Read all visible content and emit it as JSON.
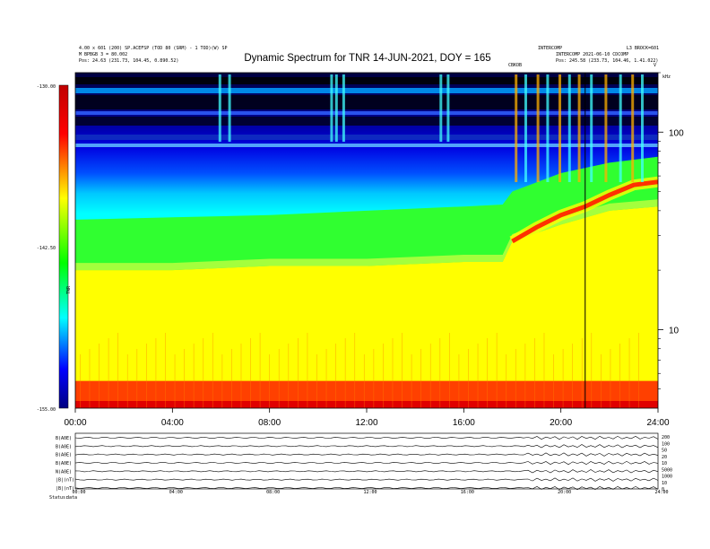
{
  "header": {
    "title": "Dynamic Spectrum for TNR 14-JUN-2021, DOY = 165",
    "left_lines": [
      "4.00 x 601 (200) SP.ACEFSP (TOD 80 (SRM) - 1 TOD)(W) SP",
      "M BPBGB 3 = 80.002",
      "Pos:    24.63 (231.73, 104.45, 0.890.52)"
    ],
    "right_lines": [
      "INTERCOMP",
      "INTERCOMP 2021-06-10 CDCOMP",
      "Pos:    245.58 (233.73, 104.46, 1.41.022)"
    ],
    "right_top_label": "L3 BROCK=601",
    "marker_label_left": "CBKOB",
    "marker_label_right": "V",
    "axis_unit_right": "kHz"
  },
  "colorbar": {
    "max_label": "-130.00",
    "mid_label": "-142.50",
    "min_label": "-155.00",
    "unit_label": "TNR"
  },
  "chart_data": {
    "type": "heatmap",
    "title": "Dynamic Spectrum for TNR 14-JUN-2021, DOY = 165",
    "x_ticks": [
      "00:00",
      "04:00",
      "08:00",
      "12:00",
      "16:00",
      "20:00",
      "24:00"
    ],
    "x_range_hours": [
      0,
      24
    ],
    "y_scale": "log",
    "y_ticks": [
      "100",
      "10"
    ],
    "y_range_khz": [
      4,
      200
    ],
    "colorbar_range": [
      -155,
      -130
    ],
    "colorscale": [
      "#000080",
      "#0000ff",
      "#00ffff",
      "#00ff00",
      "#ffff00",
      "#ff0000",
      "#c00000"
    ],
    "vertical_marker_hour": 21.0,
    "boundaries_khz": [
      {
        "hour": 0,
        "cyan_green": 36,
        "green_yellow": 20,
        "yellow_red": 5.5
      },
      {
        "hour": 4,
        "cyan_green": 37,
        "green_yellow": 20,
        "yellow_red": 5.5
      },
      {
        "hour": 8,
        "cyan_green": 38,
        "green_yellow": 21,
        "yellow_red": 5.5
      },
      {
        "hour": 12,
        "cyan_green": 40,
        "green_yellow": 21,
        "yellow_red": 5.5
      },
      {
        "hour": 16,
        "cyan_green": 42,
        "green_yellow": 22,
        "yellow_red": 5.5
      },
      {
        "hour": 17.6,
        "cyan_green": 43,
        "green_yellow": 22,
        "yellow_red": 5.5
      },
      {
        "hour": 18.0,
        "cyan_green": 50,
        "green_yellow": 28,
        "yellow_red": 5.5
      },
      {
        "hour": 20,
        "cyan_green": 62,
        "green_yellow": 34,
        "yellow_red": 5.5
      },
      {
        "hour": 22,
        "cyan_green": 70,
        "green_yellow": 40,
        "yellow_red": 5.5
      },
      {
        "hour": 24,
        "cyan_green": 75,
        "green_yellow": 42,
        "yellow_red": 5.5
      }
    ],
    "emission_ridge_khz": [
      {
        "hour": 18.0,
        "value": 28
      },
      {
        "hour": 19,
        "value": 33
      },
      {
        "hour": 20,
        "value": 38
      },
      {
        "hour": 21,
        "value": 42
      },
      {
        "hour": 22,
        "value": 48
      },
      {
        "hour": 23,
        "value": 54
      },
      {
        "hour": 24,
        "value": 56
      }
    ]
  },
  "bottom_panel": {
    "row_labels": [
      "B(A0E)",
      "B(A0E)",
      "B(A0E)",
      "B(A0E)",
      "N(A0E)",
      "|B|(nT)",
      "|B|(nT)"
    ],
    "right_labels": [
      "200",
      "100",
      "50",
      "20",
      "10",
      "5000",
      "1000",
      "10",
      "0"
    ],
    "x_ticks": [
      "00:00",
      "04:00",
      "08:00",
      "12:00",
      "16:00",
      "20:00",
      "24:00"
    ],
    "footer_left": "Status:",
    "footer_value": "data"
  }
}
